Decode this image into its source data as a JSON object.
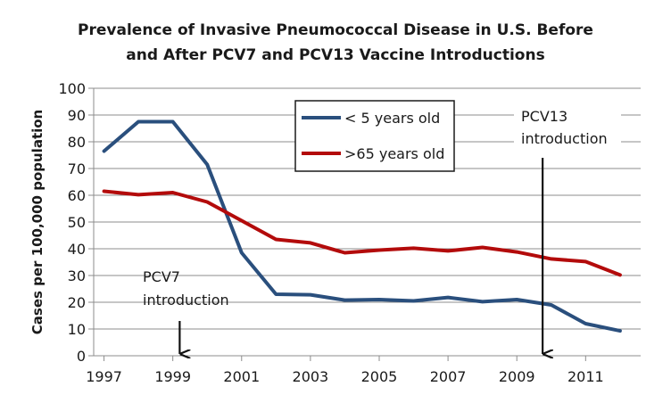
{
  "chart_data": {
    "type": "line",
    "title_lines": [
      "Prevalence of Invasive Pneumococcal Disease in U.S. Before",
      "and After PCV7 and PCV13 Vaccine Introductions"
    ],
    "ylabel": "Cases per 100,000 population",
    "xlabel": "",
    "x": [
      1997,
      1998,
      1999,
      2000,
      2001,
      2002,
      2003,
      2004,
      2005,
      2006,
      2007,
      2008,
      2009,
      2010,
      2011,
      2012
    ],
    "xticks": [
      "1997",
      "1999",
      "2001",
      "2003",
      "2005",
      "2007",
      "2009",
      "2011"
    ],
    "xlim": [
      1996.7,
      2012.6
    ],
    "ylim": [
      0,
      100
    ],
    "yticks": [
      0,
      10,
      20,
      30,
      40,
      50,
      60,
      70,
      80,
      90,
      100
    ],
    "grid": "horizontal",
    "legend_position": "top-center",
    "series": [
      {
        "name": "< 5 years old",
        "color": "#2a4f7d",
        "values": [
          76.5,
          87.5,
          87.5,
          71.5,
          38.5,
          23,
          22.8,
          20.8,
          21,
          20.5,
          21.8,
          20.2,
          21,
          19,
          12,
          9.3
        ]
      },
      {
        "name": ">65 years old",
        "color": "#b30b0b",
        "values": [
          61.5,
          60.2,
          61,
          57.5,
          50.5,
          43.5,
          42.2,
          38.5,
          39.5,
          40.2,
          39.2,
          40.5,
          38.8,
          36.2,
          35.2,
          30.2
        ]
      }
    ],
    "annotations": [
      {
        "lines": [
          "PCV7",
          "introduction"
        ],
        "arrow_x": 1999.2,
        "arrow_from": 13,
        "arrow_to": 0
      },
      {
        "lines": [
          "PCV13",
          "introduction"
        ],
        "arrow_x": 2009.75,
        "arrow_from": 74,
        "arrow_to": 0
      }
    ]
  }
}
